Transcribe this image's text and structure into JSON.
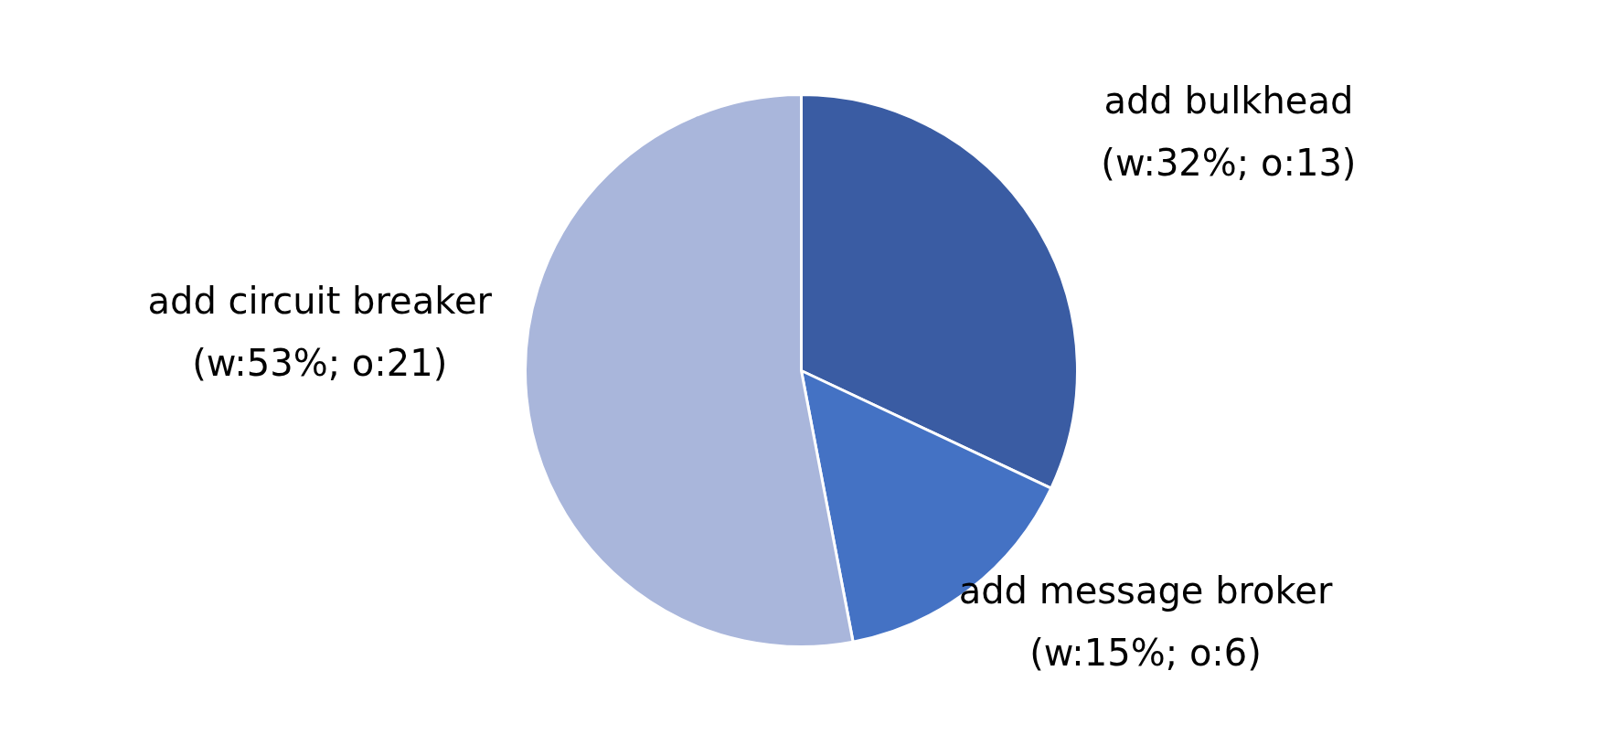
{
  "chart_data": {
    "type": "pie",
    "categories": [
      "add bulkhead",
      "add message broker",
      "add circuit breaker"
    ],
    "values": [
      32,
      15,
      53
    ],
    "value_labels": [
      "(w:32%; o:13)",
      "(w:15%; o:6)",
      "(w:53%; o:21)"
    ],
    "colors": [
      "#3a5ca3",
      "#4472c4",
      "#a9b6db"
    ]
  }
}
